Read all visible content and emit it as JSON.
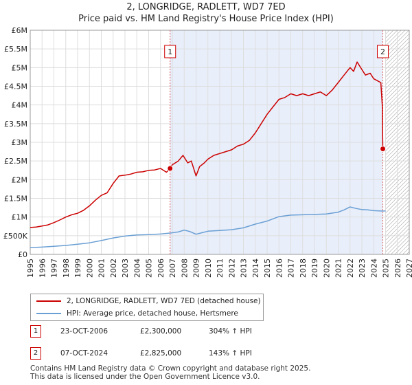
{
  "title": "2, LONGRIDGE, RADLETT, WD7 7ED",
  "subtitle": "Price paid vs. HM Land Registry's House Price Index (HPI)",
  "colors": {
    "property": "#cc0000",
    "hpi": "#6a9fd4",
    "shade": "#e8eefa",
    "grid": "#dddddd",
    "hatch": "#999999"
  },
  "chart_data": {
    "type": "line",
    "title": "2, LONGRIDGE, RADLETT, WD7 7ED",
    "xlim": [
      1995,
      2027
    ],
    "ylim": [
      0,
      6000000
    ],
    "x_ticks": [
      "1995",
      "1996",
      "1997",
      "1998",
      "1999",
      "2000",
      "2001",
      "2002",
      "2003",
      "2004",
      "2005",
      "2006",
      "2007",
      "2008",
      "2009",
      "2010",
      "2011",
      "2012",
      "2013",
      "2014",
      "2015",
      "2016",
      "2017",
      "2018",
      "2019",
      "2020",
      "2021",
      "2022",
      "2023",
      "2024",
      "2025",
      "2026",
      "2027"
    ],
    "y_ticks": [
      {
        "value": 0,
        "label": "£0"
      },
      {
        "value": 500000,
        "label": "£500K"
      },
      {
        "value": 1000000,
        "label": "£1M"
      },
      {
        "value": 1500000,
        "label": "£1.5M"
      },
      {
        "value": 2000000,
        "label": "£2M"
      },
      {
        "value": 2500000,
        "label": "£2.5M"
      },
      {
        "value": 3000000,
        "label": "£3M"
      },
      {
        "value": 3500000,
        "label": "£3.5M"
      },
      {
        "value": 4000000,
        "label": "£4M"
      },
      {
        "value": 4500000,
        "label": "£4.5M"
      },
      {
        "value": 5000000,
        "label": "£5M"
      },
      {
        "value": 5500000,
        "label": "£5.5M"
      },
      {
        "value": 6000000,
        "label": "£6M"
      }
    ],
    "shaded_range": [
      2006.81,
      2024.77
    ],
    "forecast_from": 2025.0,
    "series": [
      {
        "name": "2, LONGRIDGE, RADLETT, WD7 7ED (detached house)",
        "color": "#cc0000",
        "x": [
          1995.0,
          1995.5,
          1996.0,
          1996.5,
          1997.0,
          1997.5,
          1998.0,
          1998.5,
          1999.0,
          1999.5,
          2000.0,
          2000.5,
          2001.0,
          2001.5,
          2002.0,
          2002.5,
          2003.0,
          2003.5,
          2004.0,
          2004.5,
          2005.0,
          2005.5,
          2006.0,
          2006.5,
          2006.81,
          2007.0,
          2007.5,
          2007.9,
          2008.3,
          2008.6,
          2009.0,
          2009.3,
          2009.7,
          2010.0,
          2010.5,
          2011.0,
          2011.5,
          2012.0,
          2012.5,
          2013.0,
          2013.5,
          2014.0,
          2014.5,
          2015.0,
          2015.5,
          2016.0,
          2016.5,
          2017.0,
          2017.5,
          2018.0,
          2018.5,
          2019.0,
          2019.5,
          2020.0,
          2020.5,
          2021.0,
          2021.5,
          2022.0,
          2022.3,
          2022.6,
          2023.0,
          2023.3,
          2023.7,
          2024.0,
          2024.3,
          2024.6,
          2024.72,
          2024.77
        ],
        "values": [
          720000,
          730000,
          760000,
          790000,
          850000,
          920000,
          1000000,
          1060000,
          1100000,
          1180000,
          1300000,
          1450000,
          1580000,
          1650000,
          1900000,
          2100000,
          2120000,
          2150000,
          2200000,
          2210000,
          2250000,
          2260000,
          2300000,
          2200000,
          2300000,
          2400000,
          2500000,
          2650000,
          2450000,
          2500000,
          2100000,
          2350000,
          2450000,
          2550000,
          2650000,
          2700000,
          2750000,
          2800000,
          2900000,
          2950000,
          3050000,
          3250000,
          3500000,
          3750000,
          3950000,
          4150000,
          4200000,
          4300000,
          4250000,
          4300000,
          4250000,
          4300000,
          4350000,
          4250000,
          4400000,
          4600000,
          4800000,
          5000000,
          4900000,
          5150000,
          4950000,
          4800000,
          4850000,
          4700000,
          4650000,
          4600000,
          4000000,
          2825000
        ]
      },
      {
        "name": "HPI: Average price, detached house, Hertsmere",
        "color": "#6a9fd4",
        "x": [
          1995.0,
          1996.0,
          1997.0,
          1998.0,
          1999.0,
          2000.0,
          2001.0,
          2002.0,
          2003.0,
          2004.0,
          2005.0,
          2006.0,
          2006.81,
          2007.5,
          2008.0,
          2008.5,
          2009.0,
          2009.5,
          2010.0,
          2011.0,
          2012.0,
          2013.0,
          2014.0,
          2015.0,
          2016.0,
          2017.0,
          2018.0,
          2019.0,
          2020.0,
          2021.0,
          2021.5,
          2022.0,
          2022.5,
          2023.0,
          2023.5,
          2024.0,
          2024.77,
          2025.0
        ],
        "values": [
          180000,
          195000,
          215000,
          240000,
          270000,
          310000,
          370000,
          440000,
          490000,
          520000,
          530000,
          545000,
          570000,
          600000,
          650000,
          610000,
          540000,
          580000,
          620000,
          640000,
          660000,
          710000,
          810000,
          890000,
          1010000,
          1050000,
          1060000,
          1070000,
          1080000,
          1130000,
          1190000,
          1270000,
          1230000,
          1200000,
          1190000,
          1170000,
          1160000,
          1165000
        ]
      }
    ],
    "sales": [
      {
        "label": "1",
        "x": 2006.81,
        "value": 2300000
      },
      {
        "label": "2",
        "x": 2024.77,
        "value": 2825000
      }
    ]
  },
  "legend": {
    "property_label": "2, LONGRIDGE, RADLETT, WD7 7ED (detached house)",
    "hpi_label": "HPI: Average price, detached house, Hertsmere"
  },
  "sales_table": [
    {
      "num": "1",
      "date": "23-OCT-2006",
      "price": "£2,300,000",
      "hpi": "304% ↑ HPI"
    },
    {
      "num": "2",
      "date": "07-OCT-2024",
      "price": "£2,825,000",
      "hpi": "143% ↑ HPI"
    }
  ],
  "footer": {
    "line1": "Contains HM Land Registry data © Crown copyright and database right 2025.",
    "line2": "This data is licensed under the Open Government Licence v3.0."
  }
}
